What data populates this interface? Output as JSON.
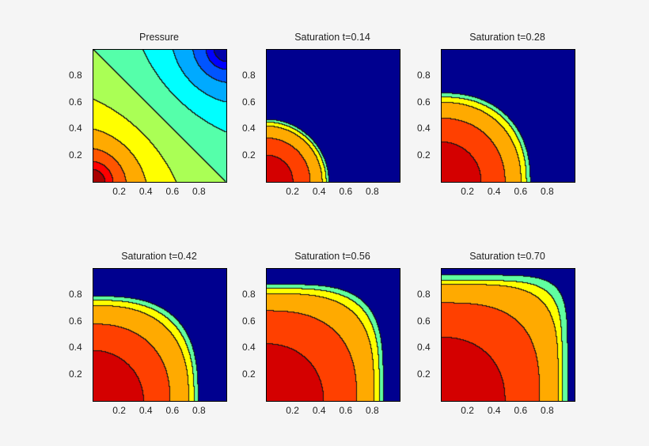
{
  "chart_data": {
    "type": "heatmap",
    "subtype": "filled-contour",
    "colormap": "jet",
    "grid": false,
    "xlim": [
      0,
      1
    ],
    "ylim": [
      0,
      1
    ],
    "xticks": [
      "0.2",
      "0.4",
      "0.6",
      "0.8"
    ],
    "yticks": [
      "0.2",
      "0.4",
      "0.6",
      "0.8"
    ],
    "plots": [
      {
        "title": "Pressure",
        "kind": "pressure",
        "source": [
          0,
          0
        ],
        "sink": [
          1,
          1
        ],
        "levels": 12
      },
      {
        "title": "Saturation t=0.14",
        "kind": "saturation",
        "contour_radii": [
          0.2,
          0.33,
          0.42,
          0.45,
          0.47
        ]
      },
      {
        "title": "Saturation t=0.28",
        "kind": "saturation",
        "contour_radii": [
          0.3,
          0.48,
          0.6,
          0.64,
          0.67
        ]
      },
      {
        "title": "Saturation t=0.42",
        "kind": "saturation",
        "contour_radii": [
          0.38,
          0.58,
          0.72,
          0.76,
          0.79
        ]
      },
      {
        "title": "Saturation t=0.56",
        "kind": "saturation",
        "contour_radii": [
          0.43,
          0.68,
          0.81,
          0.85,
          0.88
        ]
      },
      {
        "title": "Saturation t=0.70",
        "kind": "saturation",
        "contour_radii": [
          0.48,
          0.74,
          0.88,
          0.91,
          0.95
        ]
      }
    ],
    "saturation_colors": [
      "#d40000",
      "#ff4000",
      "#ffaa00",
      "#ffff00",
      "#60ffa0",
      "#00008f"
    ]
  }
}
